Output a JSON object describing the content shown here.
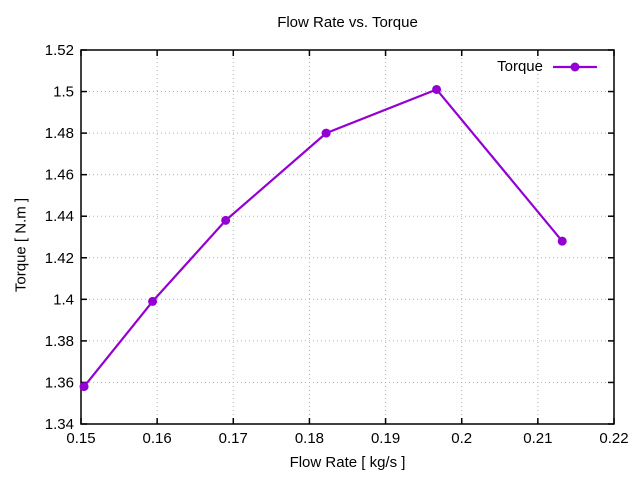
{
  "chart_data": {
    "type": "line",
    "title": "Flow Rate vs. Torque",
    "xlabel": "Flow Rate [ kg/s ]",
    "ylabel": "Torque [ N.m ]",
    "xlim": [
      0.15,
      0.22
    ],
    "ylim": [
      1.34,
      1.52
    ],
    "grid": true,
    "grid_style": "dotted",
    "legend": {
      "label": "Torque",
      "position": "top-right-inside"
    },
    "x_ticks": [
      {
        "value": 0.15,
        "label": "0.15"
      },
      {
        "value": 0.16,
        "label": "0.16"
      },
      {
        "value": 0.17,
        "label": "0.17"
      },
      {
        "value": 0.18,
        "label": "0.18"
      },
      {
        "value": 0.19,
        "label": "0.19"
      },
      {
        "value": 0.2,
        "label": "0.2"
      },
      {
        "value": 0.21,
        "label": "0.21"
      },
      {
        "value": 0.22,
        "label": "0.22"
      }
    ],
    "y_ticks": [
      {
        "value": 1.34,
        "label": "1.34"
      },
      {
        "value": 1.36,
        "label": "1.36"
      },
      {
        "value": 1.38,
        "label": "1.38"
      },
      {
        "value": 1.4,
        "label": "1.4"
      },
      {
        "value": 1.42,
        "label": "1.42"
      },
      {
        "value": 1.44,
        "label": "1.44"
      },
      {
        "value": 1.46,
        "label": "1.46"
      },
      {
        "value": 1.48,
        "label": "1.48"
      },
      {
        "value": 1.5,
        "label": "1.5"
      },
      {
        "value": 1.52,
        "label": "1.52"
      }
    ],
    "series": [
      {
        "name": "Torque",
        "color": "#9400D3",
        "marker": "filled-circle",
        "line_width": 2.2,
        "points": [
          [
            0.1504,
            1.358
          ],
          [
            0.1594,
            1.399
          ],
          [
            0.169,
            1.438
          ],
          [
            0.1822,
            1.48
          ],
          [
            0.1967,
            1.501
          ],
          [
            0.2132,
            1.428
          ]
        ]
      }
    ],
    "colors": {
      "background": "#ffffff",
      "axis": "#000000",
      "grid": "#b3b3b3",
      "text": "#000000"
    }
  }
}
